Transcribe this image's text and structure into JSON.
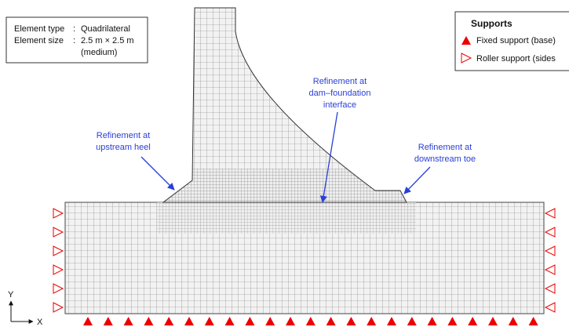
{
  "info_box": {
    "rows": [
      {
        "label": "Element type",
        "sep": ":",
        "value": "Quadrilateral"
      },
      {
        "label": "Element size",
        "sep": ":",
        "value": "2.5 m × 2.5 m"
      },
      {
        "label": "",
        "sep": "",
        "value": "(medium)"
      }
    ]
  },
  "legend": {
    "title": "Supports",
    "items": [
      "Fixed support (base)",
      "Roller support (sides"
    ]
  },
  "callouts": [
    {
      "lines": [
        "Refinement at",
        "upstream heel"
      ]
    },
    {
      "lines": [
        "Refinement at",
        "dam–foundation",
        "interface"
      ]
    },
    {
      "lines": [
        "Refinement at",
        "downstream toe"
      ]
    }
  ],
  "axes": {
    "y": "Y",
    "x": "X"
  }
}
